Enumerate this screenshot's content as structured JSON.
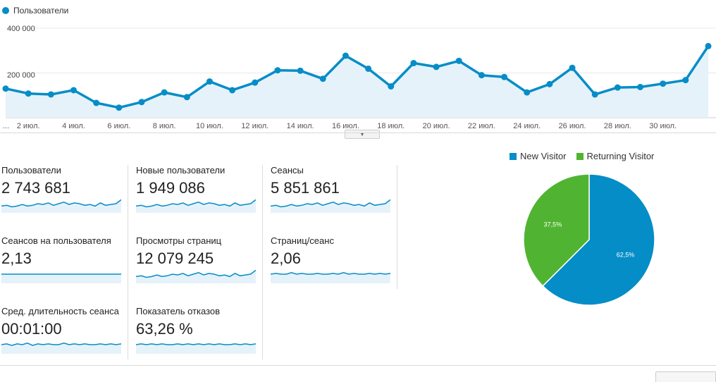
{
  "colors": {
    "blue": "#058dc7",
    "green": "#50b432",
    "area": "#e6f2fa"
  },
  "main_legend": {
    "label": "Пользователи"
  },
  "chart_data": {
    "type": "area",
    "title": "Пользователи",
    "x_labels": [
      "...",
      "2 июл.",
      "4 июл.",
      "6 июл.",
      "8 июл.",
      "10 июл.",
      "12 июл.",
      "14 июл.",
      "16 июл.",
      "18 июл.",
      "20 июл.",
      "22 июл.",
      "24 июл.",
      "26 июл.",
      "28 июл.",
      "30 июл."
    ],
    "y_ticks": [
      "400 000",
      "200 000"
    ],
    "y_tick_values": [
      400000,
      200000
    ],
    "ylim": [
      0,
      400000
    ],
    "series": [
      {
        "name": "Пользователи",
        "values": [
          130000,
          108000,
          104000,
          123000,
          66000,
          45000,
          70000,
          113000,
          92000,
          162000,
          123000,
          157000,
          212000,
          210000,
          174000,
          277000,
          219000,
          140000,
          244000,
          227000,
          254000,
          190000,
          182000,
          113000,
          150000,
          223000,
          104000,
          135000,
          137000,
          152000,
          168000,
          320000
        ]
      }
    ]
  },
  "metrics": [
    {
      "label": "Пользователи",
      "value": "2 743 681",
      "spark": [
        5,
        6,
        4,
        5,
        7,
        5,
        6,
        8,
        7,
        9,
        6,
        8,
        10,
        7,
        9,
        8,
        6,
        7,
        5,
        9,
        6,
        7,
        8,
        13
      ]
    },
    {
      "label": "Новые пользователи",
      "value": "1 949 086",
      "spark": [
        5,
        6,
        4,
        5,
        7,
        5,
        6,
        8,
        7,
        9,
        6,
        8,
        10,
        7,
        9,
        8,
        6,
        7,
        5,
        9,
        6,
        7,
        8,
        13
      ]
    },
    {
      "label": "Сеансы",
      "value": "5 851 861",
      "spark": [
        5,
        6,
        4,
        5,
        7,
        5,
        6,
        8,
        7,
        9,
        6,
        8,
        10,
        7,
        9,
        8,
        6,
        7,
        5,
        9,
        6,
        7,
        8,
        13
      ]
    },
    {
      "label": "Сеансов на пользователя",
      "value": "2,13",
      "spark": [
        8,
        8,
        8,
        8,
        8,
        8,
        8,
        8,
        8,
        8,
        8,
        8,
        8,
        8,
        8,
        8,
        8,
        8,
        8,
        8,
        8,
        8,
        8,
        8
      ]
    },
    {
      "label": "Просмотры страниц",
      "value": "12 079 245",
      "spark": [
        5,
        6,
        4,
        5,
        7,
        5,
        6,
        8,
        7,
        9,
        6,
        8,
        10,
        7,
        9,
        8,
        6,
        7,
        5,
        9,
        6,
        7,
        8,
        13
      ]
    },
    {
      "label": "Страниц/сеанс",
      "value": "2,06",
      "spark": [
        8,
        9,
        8,
        8,
        10,
        8,
        9,
        8,
        8,
        9,
        8,
        8,
        9,
        8,
        10,
        8,
        9,
        8,
        8,
        9,
        8,
        9,
        8,
        9
      ]
    },
    {
      "label": "Сред. длительность сеанса",
      "value": "00:01:00",
      "spark": [
        8,
        9,
        7,
        9,
        8,
        10,
        7,
        9,
        8,
        9,
        8,
        8,
        10,
        8,
        9,
        8,
        9,
        8,
        8,
        9,
        8,
        9,
        8,
        9
      ]
    },
    {
      "label": "Показатель отказов",
      "value": "63,26 %",
      "spark": [
        8,
        9,
        8,
        9,
        8,
        9,
        8,
        8,
        9,
        8,
        9,
        8,
        9,
        8,
        9,
        8,
        9,
        8,
        8,
        9,
        8,
        9,
        8,
        9
      ]
    }
  ],
  "pie": {
    "legend": [
      {
        "label": "New Visitor",
        "color": "#058dc7"
      },
      {
        "label": "Returning Visitor",
        "color": "#50b432"
      }
    ],
    "slices": [
      {
        "label": "62,5%",
        "value": 62.5,
        "color": "#058dc7"
      },
      {
        "label": "37,5%",
        "value": 37.5,
        "color": "#50b432"
      }
    ]
  }
}
